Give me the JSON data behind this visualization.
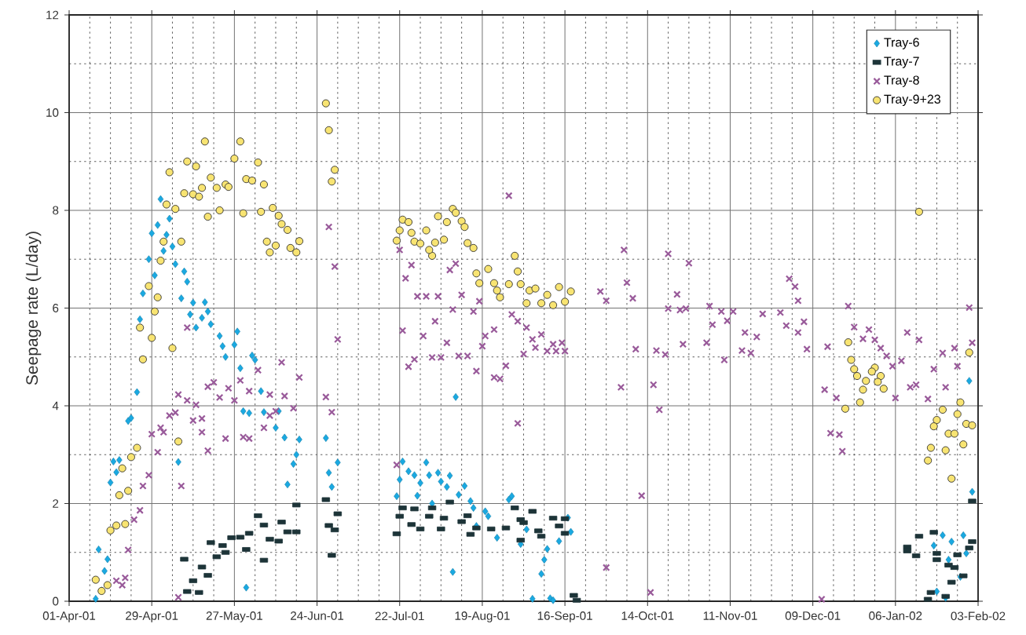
{
  "chart_data": {
    "type": "scatter",
    "ylabel": "Seepage rate (L/day)",
    "xlim": [
      "2001-04-01",
      "2002-02-03"
    ],
    "ylim": [
      0,
      12
    ],
    "xticks": [
      {
        "value": "2001-04-01",
        "label": "01-Apr-01"
      },
      {
        "value": "2001-04-29",
        "label": "29-Apr-01"
      },
      {
        "value": "2001-05-27",
        "label": "27-May-01"
      },
      {
        "value": "2001-06-24",
        "label": "24-Jun-01"
      },
      {
        "value": "2001-07-22",
        "label": "22-Jul-01"
      },
      {
        "value": "2001-08-19",
        "label": "19-Aug-01"
      },
      {
        "value": "2001-09-16",
        "label": "16-Sep-01"
      },
      {
        "value": "2001-10-14",
        "label": "14-Oct-01"
      },
      {
        "value": "2001-11-11",
        "label": "11-Nov-01"
      },
      {
        "value": "2001-12-09",
        "label": "09-Dec-01"
      },
      {
        "value": "2002-01-06",
        "label": "06-Jan-02"
      },
      {
        "value": "2002-02-03",
        "label": "03-Feb-02"
      }
    ],
    "yticks": [
      0,
      2,
      4,
      6,
      8,
      10,
      12
    ],
    "grid": true,
    "legend": "top right",
    "series": [
      {
        "name": "Tray-6",
        "color": "#1aa9e1",
        "marker": "diamond",
        "x": [
          "2001-04-10",
          "2001-04-12",
          "2001-04-13",
          "2001-04-14",
          "2001-04-11",
          "2001-04-15",
          "2001-04-17",
          "2001-04-16",
          "2001-04-18",
          "2001-04-21",
          "2001-04-22",
          "2001-04-24",
          "2001-04-25",
          "2001-04-26",
          "2001-04-28",
          "2001-04-30",
          "2001-04-29",
          "2001-05-01",
          "2001-05-02",
          "2001-05-05",
          "2001-05-04",
          "2001-05-06",
          "2001-05-03",
          "2001-05-07",
          "2001-05-10",
          "2001-05-11",
          "2001-05-09",
          "2001-05-13",
          "2001-05-17",
          "2001-05-18",
          "2001-05-12",
          "2001-05-16",
          "2001-05-14",
          "2001-05-19",
          "2001-05-22",
          "2001-05-23",
          "2001-05-24",
          "2001-05-27",
          "2001-05-28",
          "2001-06-02",
          "2001-06-03",
          "2001-05-29",
          "2001-06-05",
          "2001-05-30",
          "2001-06-01",
          "2001-06-06",
          "2001-06-11",
          "2001-06-10",
          "2001-06-13",
          "2001-06-18",
          "2001-06-17",
          "2001-06-16",
          "2001-06-14",
          "2001-05-08",
          "2001-05-31",
          "2001-06-27",
          "2001-06-28",
          "2001-07-01",
          "2001-06-29",
          "2001-08-10",
          "2001-07-23",
          "2001-07-21",
          "2001-07-22",
          "2001-07-25",
          "2001-07-27",
          "2001-07-28",
          "2001-07-29",
          "2001-07-31",
          "2001-08-01",
          "2001-08-02",
          "2001-08-04",
          "2001-08-05",
          "2001-08-07",
          "2001-08-08",
          "2001-08-11",
          "2001-08-13",
          "2001-08-15",
          "2001-08-16",
          "2001-08-20",
          "2001-08-21",
          "2001-08-29",
          "2001-08-28",
          "2001-08-24",
          "2001-08-17",
          "2001-09-03",
          "2001-09-01",
          "2001-09-10",
          "2001-09-09",
          "2001-09-08",
          "2001-09-14",
          "2001-09-18",
          "2001-09-17",
          "2001-08-09",
          "2001-09-05",
          "2001-09-11",
          "2001-09-12",
          "2002-01-31",
          "2002-02-01",
          "2002-01-22",
          "2002-01-29",
          "2002-01-25",
          "2002-01-19",
          "2002-01-30",
          "2002-01-24",
          "2002-01-28",
          "2002-01-20",
          "2002-01-23"
        ],
        "values": [
          0.05,
          0.22,
          0.62,
          0.86,
          1.06,
          2.43,
          2.64,
          2.86,
          2.89,
          3.69,
          3.75,
          4.28,
          5.77,
          6.3,
          7.0,
          6.67,
          7.53,
          7.7,
          8.23,
          7.83,
          7.5,
          7.26,
          7.17,
          6.9,
          6.75,
          6.54,
          6.2,
          6.11,
          6.12,
          5.93,
          5.87,
          5.8,
          5.6,
          5.67,
          5.43,
          5.22,
          5.0,
          5.25,
          5.52,
          5.03,
          4.94,
          4.77,
          4.3,
          3.89,
          3.85,
          3.87,
          3.89,
          3.55,
          3.35,
          3.31,
          3.0,
          2.81,
          2.39,
          2.85,
          0.28,
          3.34,
          2.63,
          2.84,
          2.34,
          4.18,
          2.86,
          2.15,
          2.49,
          2.66,
          2.58,
          2.16,
          2.42,
          2.84,
          2.58,
          2.0,
          2.63,
          2.45,
          2.34,
          2.57,
          2.18,
          2.36,
          2.05,
          1.91,
          1.84,
          1.74,
          2.15,
          2.08,
          1.3,
          1.54,
          1.47,
          1.17,
          1.07,
          0.85,
          0.56,
          1.23,
          1.42,
          1.71,
          0.6,
          0.05,
          0.06,
          0.02,
          4.51,
          2.24,
          1.35,
          1.35,
          1.22,
          1.14,
          0.98,
          0.85,
          0.5,
          0.2,
          0.07
        ]
      },
      {
        "name": "Tray-7",
        "color": "#1d3438",
        "marker": "square",
        "x": [
          "2001-05-10",
          "2001-05-16",
          "2001-05-13",
          "2001-05-11",
          "2001-05-15",
          "2001-05-18",
          "2001-05-19",
          "2001-05-23",
          "2001-05-21",
          "2001-05-24",
          "2001-05-26",
          "2001-05-29",
          "2001-05-31",
          "2001-06-01",
          "2001-06-04",
          "2001-06-06",
          "2001-06-06",
          "2001-06-08",
          "2001-06-12",
          "2001-06-14",
          "2001-06-17",
          "2001-06-17",
          "2001-06-11",
          "2001-06-27",
          "2001-07-01",
          "2001-06-28",
          "2001-06-30",
          "2001-06-29",
          "2001-07-21",
          "2001-07-23",
          "2001-07-27",
          "2001-07-22",
          "2001-07-26",
          "2001-07-29",
          "2001-08-02",
          "2001-08-01",
          "2001-08-05",
          "2001-08-08",
          "2001-08-06",
          "2001-08-12",
          "2001-08-14",
          "2001-08-17",
          "2001-08-15",
          "2001-08-22",
          "2001-08-27",
          "2001-08-30",
          "2001-09-05",
          "2001-09-01",
          "2001-09-02",
          "2001-09-01",
          "2001-09-07",
          "2001-09-08",
          "2001-09-12",
          "2001-09-16",
          "2001-09-14",
          "2001-09-16",
          "2001-09-19",
          "2001-09-20",
          "2002-02-01",
          "2002-01-14",
          "2002-01-19",
          "2002-01-10",
          "2002-01-10",
          "2002-01-13",
          "2002-02-01",
          "2002-01-31",
          "2002-01-20",
          "2002-01-27",
          "2002-01-20",
          "2002-01-24",
          "2002-01-26",
          "2002-01-29",
          "2002-01-25",
          "2002-01-18",
          "2002-01-17",
          "2002-01-23"
        ],
        "values": [
          0.86,
          0.7,
          0.42,
          0.2,
          0.18,
          0.53,
          1.2,
          1.14,
          0.91,
          1.0,
          1.3,
          1.31,
          1.06,
          1.39,
          1.75,
          1.56,
          0.84,
          1.27,
          1.62,
          1.42,
          1.42,
          1.97,
          1.23,
          2.08,
          1.79,
          1.55,
          1.46,
          0.94,
          1.38,
          1.91,
          1.89,
          1.74,
          1.57,
          1.48,
          1.91,
          1.74,
          1.48,
          2.03,
          1.7,
          1.63,
          1.75,
          1.5,
          1.37,
          1.48,
          1.5,
          1.91,
          1.84,
          1.67,
          1.61,
          1.25,
          1.44,
          1.33,
          1.7,
          1.69,
          1.54,
          1.39,
          0.12,
          0.02,
          2.05,
          1.33,
          1.41,
          1.11,
          1.03,
          0.93,
          1.22,
          1.09,
          0.98,
          0.95,
          0.85,
          0.74,
          0.69,
          0.52,
          0.39,
          0.18,
          0.04,
          0.1
        ]
      },
      {
        "name": "Tray-8",
        "color": "#995a9a",
        "marker": "cross",
        "x": [
          "2001-04-17",
          "2001-04-19",
          "2001-04-20",
          "2001-04-21",
          "2001-04-23",
          "2001-04-25",
          "2001-04-26",
          "2001-04-28",
          "2001-05-01",
          "2001-04-29",
          "2001-05-02",
          "2001-05-03",
          "2001-05-05",
          "2001-05-07",
          "2001-05-08",
          "2001-05-09",
          "2001-05-11",
          "2001-05-11",
          "2001-05-13",
          "2001-05-14",
          "2001-05-16",
          "2001-05-16",
          "2001-05-18",
          "2001-05-18",
          "2001-05-20",
          "2001-05-22",
          "2001-05-24",
          "2001-05-25",
          "2001-05-27",
          "2001-05-29",
          "2001-05-30",
          "2001-06-01",
          "2001-06-01",
          "2001-06-04",
          "2001-06-06",
          "2001-06-08",
          "2001-06-08",
          "2001-06-10",
          "2001-06-12",
          "2001-06-13",
          "2001-06-16",
          "2001-06-18",
          "2001-05-08",
          "2001-06-28",
          "2001-06-30",
          "2001-07-01",
          "2001-06-27",
          "2001-06-29",
          "2001-07-21",
          "2001-07-22",
          "2001-07-26",
          "2001-07-24",
          "2001-07-23",
          "2001-07-25",
          "2001-07-27",
          "2001-07-28",
          "2001-07-31",
          "2001-07-30",
          "2001-08-03",
          "2001-08-02",
          "2001-08-05",
          "2001-08-04",
          "2001-08-07",
          "2001-08-08",
          "2001-08-10",
          "2001-08-09",
          "2001-08-12",
          "2001-08-11",
          "2001-08-14",
          "2001-08-17",
          "2001-08-16",
          "2001-08-18",
          "2001-08-19",
          "2001-08-20",
          "2001-08-23",
          "2001-08-23",
          "2001-08-25",
          "2001-08-27",
          "2001-08-28",
          "2001-08-29",
          "2001-08-31",
          "2001-08-31",
          "2001-09-02",
          "2001-09-03",
          "2001-09-05",
          "2001-09-06",
          "2001-09-08",
          "2001-09-10",
          "2001-09-12",
          "2001-09-13",
          "2001-09-15",
          "2001-09-16",
          "2001-09-28",
          "2001-09-30",
          "2001-09-30",
          "2001-10-06",
          "2001-10-07",
          "2001-10-09",
          "2001-10-10",
          "2001-10-05",
          "2001-10-12",
          "2001-10-21",
          "2001-10-28",
          "2001-10-16",
          "2001-10-18",
          "2001-10-15",
          "2001-10-17",
          "2001-10-20",
          "2001-10-21",
          "2001-10-24",
          "2001-10-25",
          "2001-10-26",
          "2001-10-27",
          "2001-11-03",
          "2001-11-04",
          "2001-11-05",
          "2001-11-08",
          "2001-11-09",
          "2001-11-10",
          "2001-11-12",
          "2001-11-15",
          "2001-11-16",
          "2001-11-18",
          "2001-11-20",
          "2001-11-22",
          "2001-11-28",
          "2001-11-30",
          "2001-12-01",
          "2001-12-03",
          "2001-12-04",
          "2001-12-06",
          "2001-12-04",
          "2001-12-07",
          "2001-12-12",
          "2001-12-14",
          "2001-12-13",
          "2001-12-17",
          "2001-12-15",
          "2001-12-18",
          "2001-12-19",
          "2001-12-21",
          "2001-12-23",
          "2001-12-26",
          "2001-12-28",
          "2001-12-30",
          "2002-01-01",
          "2002-01-03",
          "2002-01-05",
          "2002-01-06",
          "2002-01-08",
          "2002-01-10",
          "2002-01-11",
          "2002-01-14",
          "2002-01-13",
          "2002-01-17",
          "2002-01-19",
          "2002-01-22",
          "2002-01-23",
          "2002-01-26",
          "2002-01-27",
          "2002-01-31",
          "2002-02-01"
        ],
        "values": [
          0.42,
          0.33,
          0.48,
          1.05,
          1.67,
          1.86,
          2.36,
          2.58,
          3.05,
          3.42,
          3.55,
          3.46,
          3.8,
          3.86,
          4.23,
          2.36,
          5.6,
          4.11,
          3.7,
          4.02,
          3.46,
          3.74,
          3.08,
          4.39,
          4.48,
          4.17,
          3.33,
          4.36,
          4.11,
          4.52,
          3.36,
          3.33,
          4.3,
          4.73,
          3.55,
          3.8,
          4.23,
          3.89,
          4.89,
          4.2,
          3.95,
          4.58,
          0.08,
          7.66,
          6.85,
          5.36,
          4.18,
          3.87,
          2.79,
          7.19,
          6.88,
          6.61,
          5.54,
          4.8,
          4.95,
          6.24,
          6.24,
          5.43,
          5.73,
          4.99,
          4.99,
          6.24,
          5.29,
          6.78,
          6.91,
          5.97,
          6.27,
          5.02,
          5.02,
          4.71,
          5.93,
          6.14,
          5.22,
          5.43,
          5.56,
          4.58,
          4.55,
          4.82,
          8.3,
          5.87,
          5.73,
          3.64,
          5.06,
          5.6,
          5.36,
          5.19,
          5.46,
          5.12,
          5.26,
          5.12,
          5.29,
          5.12,
          6.34,
          6.15,
          0.69,
          7.19,
          6.52,
          6.2,
          5.16,
          4.38,
          2.16,
          7.11,
          6.92,
          4.43,
          3.92,
          0.18,
          5.13,
          5.05,
          5.99,
          6.28,
          5.96,
          5.26,
          5.99,
          5.29,
          6.04,
          5.66,
          5.93,
          4.94,
          5.74,
          5.93,
          5.13,
          5.5,
          5.08,
          5.41,
          5.88,
          5.91,
          5.64,
          6.6,
          6.44,
          6.15,
          5.72,
          5.5,
          5.16,
          0.04,
          5.21,
          4.33,
          4.16,
          3.44,
          3.41,
          3.07,
          6.04,
          5.61,
          5.37,
          5.56,
          5.35,
          5.18,
          5.02,
          4.81,
          4.16,
          4.92,
          5.5,
          4.38,
          5.35,
          4.43,
          4.14,
          4.75,
          5.08,
          4.38,
          5.18,
          4.81,
          6.01,
          5.29
        ]
      },
      {
        "name": "Tray-9+23",
        "color": "#f8e472",
        "marker": "circle",
        "x": [
          "2001-04-10",
          "2001-04-12",
          "2001-04-14",
          "2001-04-15",
          "2001-04-17",
          "2001-04-20",
          "2001-04-18",
          "2001-04-21",
          "2001-04-19",
          "2001-04-22",
          "2001-04-24",
          "2001-05-08",
          "2001-04-26",
          "2001-04-25",
          "2001-04-29",
          "2001-04-30",
          "2001-05-01",
          "2001-04-28",
          "2001-05-06",
          "2001-05-02",
          "2001-05-03",
          "2001-05-09",
          "2001-05-04",
          "2001-05-07",
          "2001-05-05",
          "2001-05-10",
          "2001-05-13",
          "2001-05-15",
          "2001-05-16",
          "2001-05-11",
          "2001-05-14",
          "2001-05-17",
          "2001-05-19",
          "2001-05-21",
          "2001-05-24",
          "2001-05-25",
          "2001-05-18",
          "2001-05-22",
          "2001-05-27",
          "2001-05-29",
          "2001-05-30",
          "2001-05-31",
          "2001-06-02",
          "2001-06-04",
          "2001-06-06",
          "2001-06-05",
          "2001-06-09",
          "2001-06-11",
          "2001-06-12",
          "2001-06-14",
          "2001-06-07",
          "2001-06-08",
          "2001-06-10",
          "2001-06-15",
          "2001-06-18",
          "2001-06-17",
          "2001-06-27",
          "2001-06-28",
          "2001-06-30",
          "2001-06-29",
          "2001-07-21",
          "2001-07-22",
          "2001-07-23",
          "2001-07-25",
          "2001-07-26",
          "2001-07-27",
          "2001-07-29",
          "2001-07-31",
          "2001-08-02",
          "2001-08-01",
          "2001-08-03",
          "2001-08-06",
          "2001-08-04",
          "2001-08-07",
          "2001-08-09",
          "2001-08-10",
          "2001-08-12",
          "2001-08-13",
          "2001-08-14",
          "2001-08-16",
          "2001-08-17",
          "2001-08-18",
          "2001-08-21",
          "2001-08-23",
          "2001-08-24",
          "2001-08-25",
          "2001-08-28",
          "2001-08-30",
          "2001-08-31",
          "2001-09-01",
          "2001-09-04",
          "2001-09-03",
          "2001-09-06",
          "2001-09-08",
          "2001-09-10",
          "2001-09-12",
          "2001-09-14",
          "2001-09-16",
          "2001-09-18",
          "2001-12-21",
          "2001-12-22",
          "2001-12-23",
          "2001-12-24",
          "2001-12-30",
          "2001-12-29",
          "2002-01-01",
          "2001-12-27",
          "2001-12-31",
          "2002-01-02",
          "2001-12-26",
          "2001-12-25",
          "2001-12-20",
          "2002-01-14",
          "2002-01-31",
          "2002-01-28",
          "2002-01-27",
          "2002-01-22",
          "2002-01-20",
          "2002-01-19",
          "2002-01-30",
          "2002-02-01",
          "2002-01-24",
          "2002-01-26",
          "2002-01-29",
          "2002-01-18",
          "2002-01-23",
          "2002-01-17",
          "2002-01-25"
        ],
        "values": [
          0.44,
          0.21,
          0.33,
          1.45,
          1.55,
          1.58,
          2.17,
          2.26,
          2.72,
          2.95,
          3.14,
          3.27,
          4.95,
          5.6,
          5.39,
          5.93,
          6.22,
          6.45,
          5.18,
          6.97,
          7.36,
          7.36,
          8.12,
          8.03,
          8.78,
          8.35,
          8.33,
          8.28,
          8.46,
          9.0,
          8.9,
          9.41,
          8.67,
          8.46,
          8.53,
          8.48,
          7.87,
          8.0,
          9.06,
          9.41,
          7.94,
          8.64,
          8.61,
          8.98,
          8.53,
          7.97,
          8.05,
          7.89,
          7.72,
          7.6,
          7.36,
          7.14,
          7.28,
          7.23,
          7.37,
          7.14,
          10.19,
          9.64,
          8.83,
          8.59,
          7.38,
          7.59,
          7.81,
          7.76,
          7.54,
          7.36,
          7.32,
          7.59,
          7.07,
          7.19,
          7.34,
          7.4,
          7.88,
          7.76,
          8.03,
          7.95,
          7.78,
          7.66,
          7.33,
          7.23,
          6.71,
          6.51,
          6.8,
          6.51,
          6.36,
          6.22,
          6.49,
          7.07,
          6.75,
          6.49,
          6.36,
          6.1,
          6.4,
          6.1,
          6.27,
          6.06,
          6.43,
          6.13,
          6.34,
          5.3,
          4.94,
          4.75,
          4.61,
          4.78,
          4.7,
          4.61,
          4.51,
          4.49,
          4.35,
          4.33,
          4.07,
          3.94,
          7.97,
          5.09,
          4.07,
          3.83,
          3.92,
          3.71,
          3.58,
          3.63,
          3.6,
          3.43,
          3.43,
          3.21,
          3.14,
          3.09,
          2.88,
          2.51
        ]
      }
    ]
  }
}
